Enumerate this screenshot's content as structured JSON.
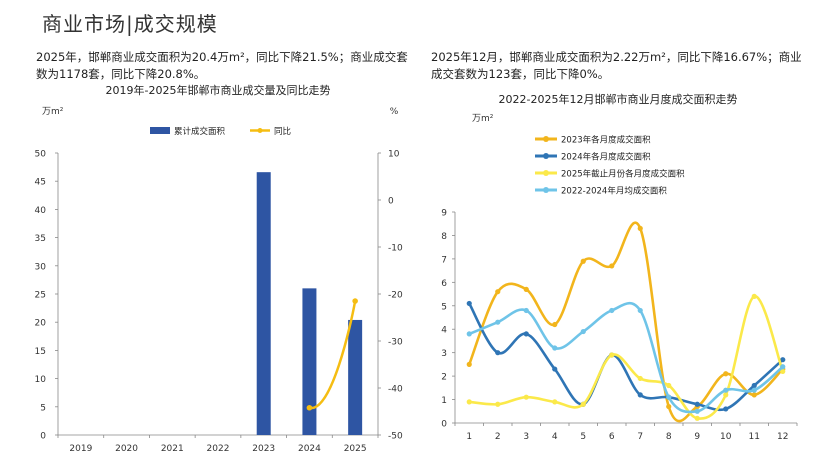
{
  "page_title": "商业市场|成交规模",
  "left_text": "2025年，邯郸商业成交面积为20.4万m²，同比下降21.5%；商业成交套数为1178套，同比下降20.8%。",
  "right_text": "2025年12月，邯郸商业成交面积为2.22万m²，同比下降16.67%；商业成交套数为123套，同比下降0%。",
  "colors": {
    "bar": "#2e55a3",
    "yoy": "#f5bd12",
    "s2023": "#f2b51c",
    "s2024": "#2f75b5",
    "s2025": "#fbe94a",
    "avg": "#6fc4e8"
  },
  "chart_data": [
    {
      "type": "bar",
      "title": "2019年-2025年邯郸市商业成交量及同比走势",
      "y_unit_left": "万m²",
      "y_unit_right": "%",
      "categories": [
        "2019",
        "2020",
        "2021",
        "2022",
        "2023",
        "2024",
        "2025"
      ],
      "series": [
        {
          "name": "累计成交面积",
          "axis": "left",
          "values": [
            0,
            0,
            0,
            0,
            46.6,
            26.0,
            20.4
          ]
        },
        {
          "name": "同比",
          "axis": "right",
          "type": "line",
          "values": [
            null,
            null,
            null,
            null,
            null,
            -44.2,
            -21.5
          ]
        }
      ],
      "ylim_left": [
        0,
        50
      ],
      "yticks_left": [
        0,
        5,
        10,
        15,
        20,
        25,
        30,
        35,
        40,
        45,
        50
      ],
      "ylim_right": [
        -50,
        10
      ],
      "yticks_right": [
        10,
        0,
        -10,
        -20,
        -30,
        -40,
        -50
      ],
      "legend": "top"
    },
    {
      "type": "line",
      "title": "2022-2025年12月邯郸市商业月度成交面积走势",
      "y_unit": "万m²",
      "x": [
        1,
        2,
        3,
        4,
        5,
        6,
        7,
        8,
        9,
        10,
        11,
        12
      ],
      "series": [
        {
          "name": "2023年各月度成交面积",
          "values": [
            2.5,
            5.6,
            5.7,
            4.2,
            6.9,
            6.7,
            8.3,
            0.7,
            0.7,
            2.1,
            1.2,
            2.3
          ]
        },
        {
          "name": "2024年各月度成交面积",
          "values": [
            5.1,
            3.0,
            3.8,
            2.3,
            0.8,
            2.9,
            1.2,
            1.1,
            0.8,
            0.6,
            1.6,
            2.7
          ]
        },
        {
          "name": "2025年截止月份各月度成交面积",
          "values": [
            0.9,
            0.8,
            1.1,
            0.9,
            0.8,
            2.9,
            1.9,
            1.6,
            0.2,
            1.2,
            5.4,
            2.2
          ]
        },
        {
          "name": "2022-2024年月均成交面积",
          "values": [
            3.8,
            4.3,
            4.8,
            3.2,
            3.9,
            4.8,
            4.8,
            1.1,
            0.5,
            1.4,
            1.4,
            2.4
          ]
        }
      ],
      "ylim": [
        0,
        9
      ],
      "yticks": [
        0,
        1,
        2,
        3,
        4,
        5,
        6,
        7,
        8,
        9
      ],
      "legend": "top-left"
    }
  ]
}
